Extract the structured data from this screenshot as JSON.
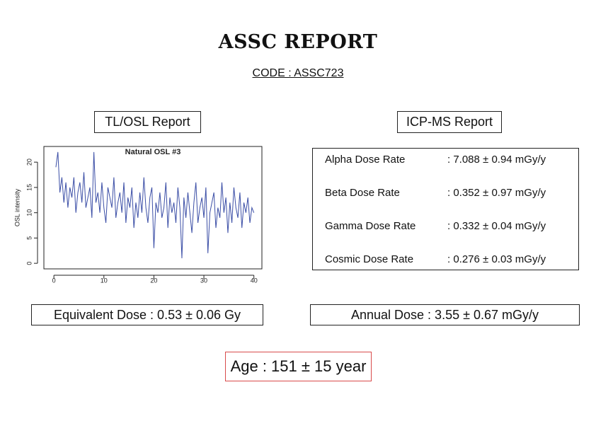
{
  "header": {
    "title": "ASSC REPORT",
    "code": "CODE : ASSC723"
  },
  "tl_osl": {
    "heading": "TL/OSL Report",
    "result": "Equivalent Dose : 0.53 ± 0.06 Gy"
  },
  "icp_ms": {
    "heading": "ICP-MS Report",
    "rows": [
      {
        "label": "Alpha Dose Rate",
        "value": ": 7.088 ± 0.94 mGy/y"
      },
      {
        "label": "Beta Dose Rate",
        "value": ": 0.352 ± 0.97 mGy/y"
      },
      {
        "label": "Gamma Dose Rate",
        "value": ": 0.332 ± 0.04 mGy/y"
      },
      {
        "label": "Cosmic Dose Rate",
        "value": ": 0.276 ± 0.03 mGy/y"
      }
    ],
    "result": "Annual Dose : 3.55 ± 0.67 mGy/y"
  },
  "age": "Age : 151 ± 15 year",
  "chart_data": {
    "type": "line",
    "title": "Natural OSL #3",
    "y_label": "OSL intensity",
    "color": "#3b4ea6",
    "x": [
      0.4,
      0.8,
      1.2,
      1.6,
      2,
      2.4,
      2.8,
      3.2,
      3.6,
      4,
      4.4,
      4.8,
      5.2,
      5.6,
      6,
      6.4,
      6.8,
      7.2,
      7.6,
      8,
      8.4,
      8.8,
      9.2,
      9.6,
      10,
      10.4,
      10.8,
      11.2,
      11.6,
      12,
      12.4,
      12.8,
      13.2,
      13.6,
      14,
      14.4,
      14.8,
      15.2,
      15.6,
      16,
      16.4,
      16.8,
      17.2,
      17.6,
      18,
      18.4,
      18.8,
      19.2,
      19.6,
      20,
      20.4,
      20.8,
      21.2,
      21.6,
      22,
      22.4,
      22.8,
      23.2,
      23.6,
      24,
      24.4,
      24.8,
      25.2,
      25.6,
      26,
      26.4,
      26.8,
      27.2,
      27.6,
      28,
      28.4,
      28.8,
      29.2,
      29.6,
      30,
      30.4,
      30.8,
      31.2,
      31.6,
      32,
      32.4,
      32.8,
      33.2,
      33.6,
      34,
      34.4,
      34.8,
      35.2,
      35.6,
      36,
      36.4,
      36.8,
      37.2,
      37.6,
      38,
      38.4,
      38.8,
      39.2,
      39.6,
      40
    ],
    "values": [
      19,
      22,
      14,
      17,
      12,
      16,
      11,
      15,
      13,
      17,
      10,
      14,
      16,
      12,
      18,
      11,
      13,
      15,
      9,
      22,
      12,
      14,
      10,
      16,
      11,
      8,
      15,
      13,
      11,
      17,
      9,
      12,
      14,
      10,
      16,
      8,
      13,
      11,
      15,
      7,
      12,
      9,
      14,
      10,
      17,
      11,
      8,
      13,
      15,
      3,
      12,
      10,
      14,
      9,
      11,
      16,
      7,
      13,
      10,
      12,
      8,
      15,
      11,
      1,
      13,
      9,
      14,
      10,
      6,
      12,
      16,
      8,
      11,
      13,
      9,
      15,
      2,
      10,
      12,
      14,
      7,
      11,
      9,
      16,
      10,
      13,
      6,
      12,
      8,
      15,
      11,
      9,
      14,
      7,
      12,
      10,
      13,
      8,
      11,
      10
    ],
    "xlim": [
      -2,
      41.6
    ],
    "ylim": [
      -1.1,
      23.1
    ],
    "xticks": [
      0,
      10,
      20,
      30,
      40
    ],
    "yticks": [
      0,
      5,
      10,
      15,
      20
    ]
  }
}
